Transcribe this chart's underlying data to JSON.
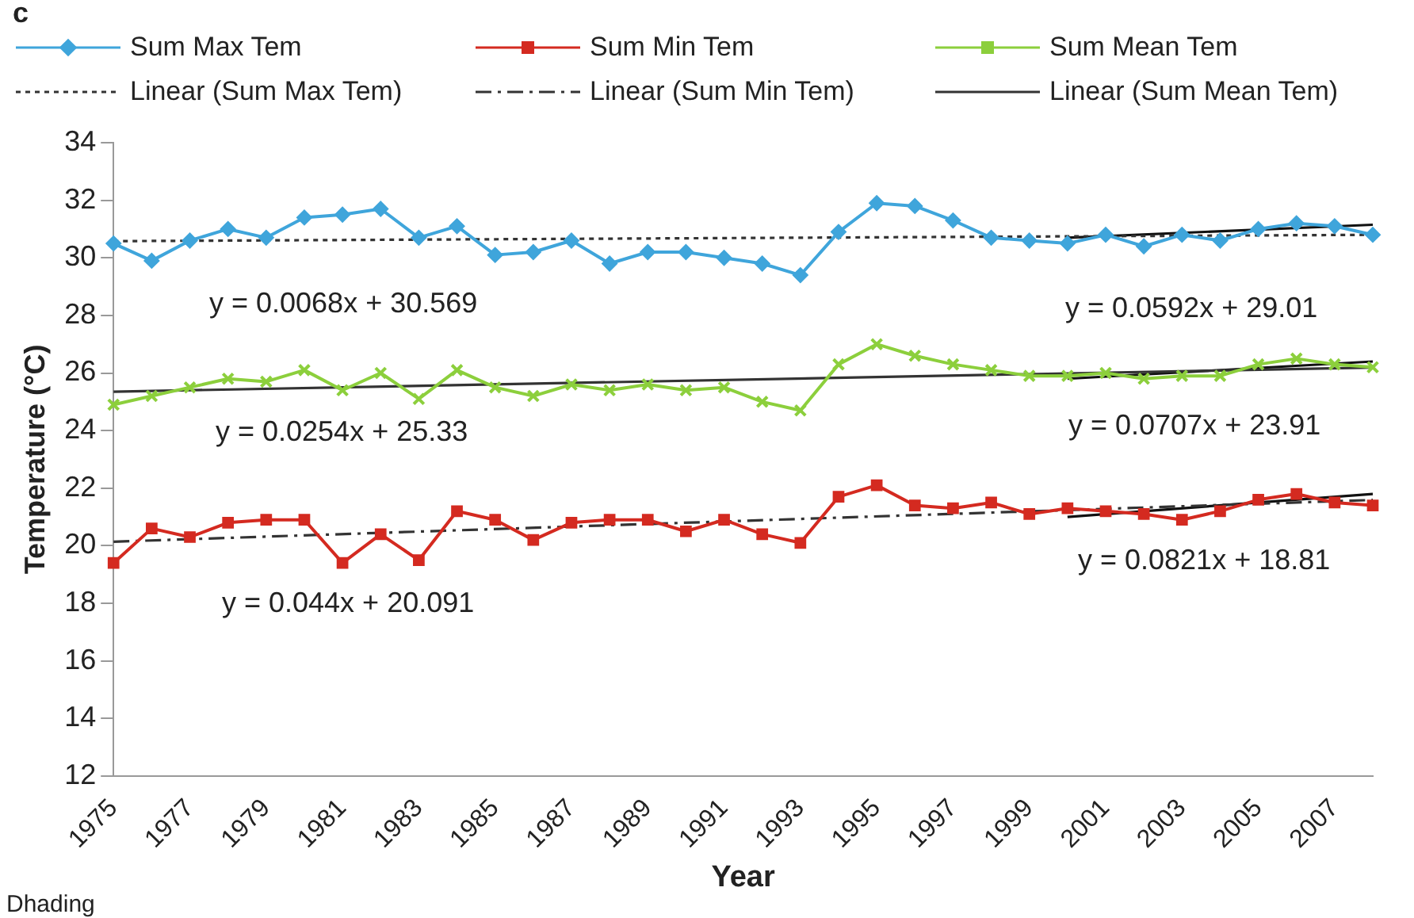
{
  "chart_data": {
    "type": "line",
    "xlabel": "Year",
    "ylabel": "Temperature (°C)",
    "categories": [
      "1975",
      null,
      "1977",
      null,
      "1979",
      null,
      "1981",
      null,
      "1983",
      null,
      "1985",
      null,
      "1987",
      null,
      "1989",
      null,
      "1991",
      null,
      "1993",
      null,
      "1995",
      null,
      "1997",
      null,
      "1999",
      null,
      "2001",
      null,
      "2003",
      null,
      "2005",
      null,
      "2007",
      null
    ],
    "ylim": [
      12,
      34
    ],
    "yticks": [
      12,
      14,
      16,
      18,
      20,
      22,
      24,
      26,
      28,
      30,
      32,
      34
    ],
    "grid": false,
    "legend": "top",
    "line_style": "solid",
    "series": [
      {
        "name": "Sum Max Tem",
        "color": "#3fa5db",
        "marker": "diamond",
        "values": [
          30.5,
          29.9,
          30.6,
          31.0,
          30.7,
          31.4,
          31.5,
          31.7,
          30.7,
          31.1,
          30.1,
          30.2,
          30.6,
          29.8,
          30.2,
          30.2,
          30.0,
          29.8,
          29.4,
          30.9,
          31.9,
          31.8,
          31.3,
          30.7,
          30.6,
          30.5,
          30.8,
          30.4,
          30.8,
          30.6,
          31.0,
          31.2,
          31.1,
          30.8
        ]
      },
      {
        "name": "Sum Min Tem",
        "color": "#d42a20",
        "marker": "square",
        "values": [
          19.4,
          20.6,
          20.3,
          20.8,
          20.9,
          20.9,
          19.4,
          20.4,
          19.5,
          21.2,
          20.9,
          20.2,
          20.8,
          20.9,
          20.9,
          20.5,
          20.9,
          20.4,
          20.1,
          21.7,
          22.1,
          21.4,
          21.3,
          21.5,
          21.1,
          21.3,
          21.2,
          21.1,
          20.9,
          21.2,
          21.6,
          21.8,
          21.5,
          21.4
        ]
      },
      {
        "name": "Sum Mean Tem",
        "color": "#8ccf3c",
        "marker": "cross",
        "values": [
          24.9,
          25.2,
          25.5,
          25.8,
          25.7,
          26.1,
          25.4,
          26.0,
          25.1,
          26.1,
          25.5,
          25.2,
          25.6,
          25.4,
          25.6,
          25.4,
          25.5,
          25.0,
          24.7,
          26.3,
          27.0,
          26.6,
          26.3,
          26.1,
          25.9,
          25.9,
          26.0,
          25.8,
          25.9,
          25.9,
          26.3,
          26.5,
          26.3,
          26.2
        ]
      },
      {
        "name": "Linear (Sum Max Tem)",
        "color": "#333333",
        "marker": "none",
        "line_style": "dotted",
        "values": [
          30.58,
          null,
          null,
          null,
          null,
          null,
          null,
          null,
          null,
          null,
          null,
          null,
          null,
          null,
          null,
          null,
          null,
          null,
          null,
          null,
          null,
          null,
          null,
          null,
          null,
          null,
          null,
          null,
          null,
          null,
          null,
          null,
          null,
          30.8
        ]
      },
      {
        "name": "Linear (Sum Min Tem)",
        "color": "#333333",
        "marker": "none",
        "line_style": "dashdot",
        "values": [
          20.14,
          null,
          null,
          null,
          null,
          null,
          null,
          null,
          null,
          null,
          null,
          null,
          null,
          null,
          null,
          null,
          null,
          null,
          null,
          null,
          null,
          null,
          null,
          null,
          null,
          null,
          null,
          null,
          null,
          null,
          null,
          null,
          null,
          21.59
        ]
      },
      {
        "name": "Linear (Sum Mean Tem)",
        "color": "#333333",
        "marker": "none",
        "line_style": "solid",
        "values": [
          25.35,
          null,
          null,
          null,
          null,
          null,
          null,
          null,
          null,
          null,
          null,
          null,
          null,
          null,
          null,
          null,
          null,
          null,
          null,
          null,
          null,
          null,
          null,
          null,
          null,
          null,
          null,
          null,
          null,
          null,
          null,
          null,
          null,
          26.19
        ]
      },
      {
        "color": "#111111",
        "marker": "none",
        "line_style": "solid",
        "values": [
          null,
          null,
          null,
          null,
          null,
          null,
          null,
          null,
          null,
          null,
          null,
          null,
          null,
          null,
          null,
          null,
          null,
          null,
          null,
          null,
          null,
          null,
          null,
          null,
          null,
          30.7,
          null,
          null,
          null,
          null,
          null,
          null,
          null,
          31.15
        ]
      },
      {
        "color": "#111111",
        "marker": "none",
        "line_style": "solid",
        "values": [
          null,
          null,
          null,
          null,
          null,
          null,
          null,
          null,
          null,
          null,
          null,
          null,
          null,
          null,
          null,
          null,
          null,
          null,
          null,
          null,
          null,
          null,
          null,
          null,
          null,
          25.8,
          null,
          null,
          null,
          null,
          null,
          null,
          null,
          26.4
        ]
      },
      {
        "color": "#111111",
        "marker": "none",
        "line_style": "solid",
        "values": [
          null,
          null,
          null,
          null,
          null,
          null,
          null,
          null,
          null,
          null,
          null,
          null,
          null,
          null,
          null,
          null,
          null,
          null,
          null,
          null,
          null,
          null,
          null,
          null,
          null,
          21.0,
          null,
          null,
          null,
          null,
          null,
          null,
          null,
          21.8
        ]
      }
    ],
    "annotations": [
      "c",
      "y = 0.0068x + 30.569",
      "y = 0.0254x + 25.33",
      "y = 0.044x + 20.091",
      "y = 0.0592x + 29.01",
      "y = 0.0707x + 23.91",
      "y = 0.0821x + 18.81",
      "Dhading"
    ]
  }
}
